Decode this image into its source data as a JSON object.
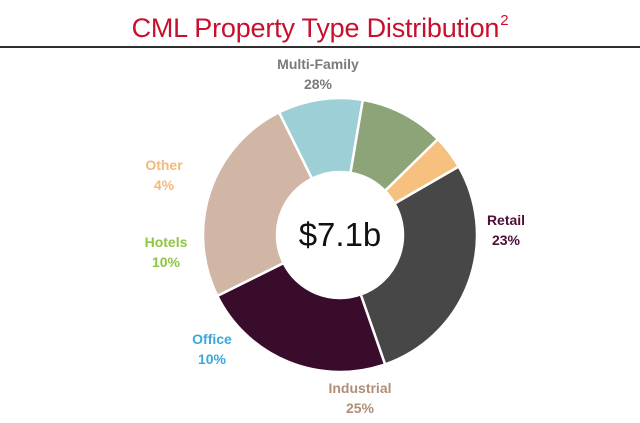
{
  "chart_data": {
    "type": "donut",
    "title": "CML Property Type Distribution",
    "title_superscript": "2",
    "center_label": "$7.1b",
    "categories": [
      "Multi-Family",
      "Retail",
      "Industrial",
      "Office",
      "Hotels",
      "Other"
    ],
    "values": [
      28,
      23,
      25,
      10,
      10,
      4
    ],
    "value_labels": [
      "28%",
      "23%",
      "25%",
      "10%",
      "10%",
      "4%"
    ],
    "colors": [
      "#474747",
      "#3a0c2c",
      "#d1b6a6",
      "#9ccfd6",
      "#8da479",
      "#f6c07e"
    ],
    "label_colors": [
      "#7a7a7a",
      "#4d0e3a",
      "#b08e78",
      "#3aa8dc",
      "#8ec641",
      "#f4b97a"
    ],
    "start_angle_deg": -30
  }
}
